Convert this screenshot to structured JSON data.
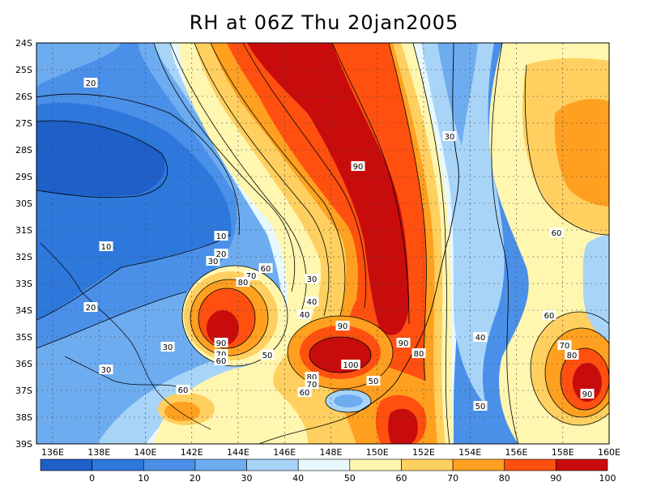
{
  "title": "RH at 06Z Thu 20jan2005",
  "lat_labels": [
    "24S",
    "25S",
    "26S",
    "27S",
    "28S",
    "29S",
    "30S",
    "31S",
    "32S",
    "33S",
    "34S",
    "35S",
    "36S",
    "37S",
    "38S",
    "39S"
  ],
  "lon_labels": [
    "136E",
    "138E",
    "140E",
    "142E",
    "144E",
    "146E",
    "148E",
    "150E",
    "152E",
    "154E",
    "156E",
    "158E",
    "160E"
  ],
  "colorbar": {
    "labels": [
      "0",
      "10",
      "20",
      "30",
      "40",
      "50",
      "60",
      "70",
      "80",
      "90",
      "100"
    ],
    "colors": [
      "#1E5FC8",
      "#2E78DC",
      "#4A90E8",
      "#6EACF0",
      "#A8D4F8",
      "#E8F8FF",
      "#FFF6B0",
      "#FFD060",
      "#FFA020",
      "#FF5010",
      "#C80C0C"
    ]
  },
  "contour_labels": [
    "20",
    "10",
    "10",
    "20",
    "30",
    "30",
    "20",
    "30",
    "60",
    "70",
    "80",
    "90",
    "70",
    "60",
    "40",
    "30",
    "40",
    "50",
    "90",
    "100",
    "90",
    "80",
    "80",
    "70",
    "60",
    "50",
    "60",
    "90",
    "30",
    "60",
    "40",
    "60",
    "70",
    "80",
    "90",
    "50"
  ],
  "chart_data": {
    "type": "heatmap",
    "title": "RH at 06Z Thu 20jan2005",
    "variable": "RH",
    "xrange": [
      "136E",
      "160E"
    ],
    "yrange": [
      "24S",
      "39S"
    ],
    "levels": [
      0,
      10,
      20,
      30,
      40,
      50,
      60,
      70,
      80,
      90,
      100
    ],
    "features": [
      {
        "region": "inland west",
        "level": "10-20"
      },
      {
        "region": "coastal band 146E-152E",
        "level": "80-100"
      },
      {
        "region": "near 148E 36S",
        "level": "100"
      },
      {
        "region": "near 143E 35S",
        "level": "90"
      },
      {
        "region": "near 159E 36.5S",
        "level": "90"
      },
      {
        "region": "near 153E 28S",
        "level": "30"
      }
    ]
  }
}
